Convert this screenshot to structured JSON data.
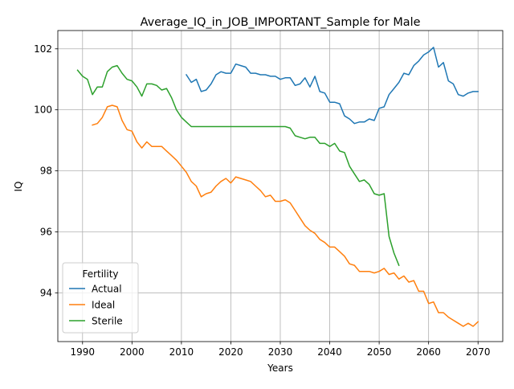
{
  "chart_data": {
    "type": "line",
    "title": "Average_IQ_in_JOB_IMPORTANT_Sample for Male",
    "xlabel": "Years",
    "ylabel": "IQ",
    "xlim": [
      1985,
      2075
    ],
    "ylim": [
      92.4,
      102.6
    ],
    "xticks": [
      1990,
      2000,
      2010,
      2020,
      2030,
      2040,
      2050,
      2060,
      2070
    ],
    "yticks": [
      94,
      96,
      98,
      100,
      102
    ],
    "grid": true,
    "legend": {
      "title": "Fertility",
      "placement": "lower-left"
    },
    "series": [
      {
        "name": "Actual",
        "color": "#1f77b4",
        "x": [
          2011,
          2012,
          2013,
          2014,
          2015,
          2016,
          2017,
          2018,
          2019,
          2020,
          2021,
          2022,
          2023,
          2024,
          2025,
          2026,
          2027,
          2028,
          2029,
          2030,
          2031,
          2032,
          2033,
          2034,
          2035,
          2036,
          2037,
          2038,
          2039,
          2040,
          2041,
          2042,
          2043,
          2044,
          2045,
          2046,
          2047,
          2048,
          2049,
          2050,
          2051,
          2052,
          2053,
          2054,
          2055,
          2056,
          2057,
          2058,
          2059,
          2060,
          2061,
          2062,
          2063,
          2064,
          2065,
          2066,
          2067,
          2068,
          2069,
          2070
        ],
        "y": [
          101.15,
          100.9,
          101.0,
          100.6,
          100.65,
          100.85,
          101.15,
          101.25,
          101.2,
          101.2,
          101.5,
          101.45,
          101.4,
          101.2,
          101.2,
          101.15,
          101.15,
          101.1,
          101.1,
          101.0,
          101.05,
          101.05,
          100.8,
          100.85,
          101.05,
          100.75,
          101.1,
          100.6,
          100.55,
          100.25,
          100.25,
          100.2,
          99.8,
          99.7,
          99.55,
          99.6,
          99.6,
          99.7,
          99.65,
          100.05,
          100.1,
          100.5,
          100.7,
          100.9,
          101.2,
          101.15,
          101.45,
          101.6,
          101.8,
          101.9,
          102.05,
          101.4,
          101.55,
          100.95,
          100.85,
          100.5,
          100.45,
          100.55,
          100.6,
          100.6
        ]
      },
      {
        "name": "Ideal",
        "color": "#ff7f0e",
        "x": [
          1992,
          1993,
          1994,
          1995,
          1996,
          1997,
          1998,
          1999,
          2000,
          2001,
          2002,
          2003,
          2004,
          2005,
          2006,
          2007,
          2008,
          2009,
          2010,
          2011,
          2012,
          2013,
          2014,
          2015,
          2016,
          2017,
          2018,
          2019,
          2020,
          2021,
          2022,
          2023,
          2024,
          2025,
          2026,
          2027,
          2028,
          2029,
          2030,
          2031,
          2032,
          2033,
          2034,
          2035,
          2036,
          2037,
          2038,
          2039,
          2040,
          2041,
          2042,
          2043,
          2044,
          2045,
          2046,
          2047,
          2048,
          2049,
          2050,
          2051,
          2052,
          2053,
          2054,
          2055,
          2056,
          2057,
          2058,
          2059,
          2060,
          2061,
          2062,
          2063,
          2064,
          2065,
          2066,
          2067,
          2068,
          2069,
          2070
        ],
        "y": [
          99.5,
          99.55,
          99.75,
          100.1,
          100.15,
          100.1,
          99.65,
          99.35,
          99.3,
          98.95,
          98.75,
          98.95,
          98.8,
          98.8,
          98.8,
          98.65,
          98.5,
          98.35,
          98.15,
          97.95,
          97.65,
          97.5,
          97.15,
          97.25,
          97.3,
          97.5,
          97.65,
          97.75,
          97.6,
          97.8,
          97.75,
          97.7,
          97.65,
          97.5,
          97.35,
          97.15,
          97.2,
          97.0,
          97.0,
          97.05,
          96.95,
          96.7,
          96.45,
          96.2,
          96.05,
          95.95,
          95.75,
          95.65,
          95.5,
          95.5,
          95.35,
          95.2,
          94.95,
          94.9,
          94.7,
          94.7,
          94.7,
          94.65,
          94.7,
          94.8,
          94.6,
          94.65,
          94.45,
          94.55,
          94.35,
          94.4,
          94.05,
          94.05,
          93.65,
          93.7,
          93.35,
          93.35,
          93.2,
          93.1,
          93.0,
          92.9,
          93.0,
          92.9,
          93.05
        ]
      },
      {
        "name": "Sterile",
        "color": "#2ca02c",
        "x": [
          1989,
          1990,
          1991,
          1992,
          1993,
          1994,
          1995,
          1996,
          1997,
          1998,
          1999,
          2000,
          2001,
          2002,
          2003,
          2004,
          2005,
          2006,
          2007,
          2008,
          2009,
          2010,
          2011,
          2012,
          2013,
          2014,
          2015,
          2016,
          2017,
          2018,
          2019,
          2020,
          2021,
          2022,
          2023,
          2024,
          2025,
          2026,
          2027,
          2028,
          2029,
          2030,
          2031,
          2032,
          2033,
          2034,
          2035,
          2036,
          2037,
          2038,
          2039,
          2040,
          2041,
          2042,
          2043,
          2044,
          2045,
          2046,
          2047,
          2048,
          2049,
          2050,
          2051,
          2052,
          2053,
          2054
        ],
        "y": [
          101.3,
          101.1,
          101.0,
          100.5,
          100.75,
          100.75,
          101.25,
          101.4,
          101.45,
          101.2,
          101.0,
          100.95,
          100.75,
          100.45,
          100.85,
          100.85,
          100.8,
          100.65,
          100.7,
          100.4,
          100.0,
          99.75,
          99.6,
          99.45,
          99.45,
          99.45,
          99.45,
          99.45,
          99.45,
          99.45,
          99.45,
          99.45,
          99.45,
          99.45,
          99.45,
          99.45,
          99.45,
          99.45,
          99.45,
          99.45,
          99.45,
          99.45,
          99.45,
          99.4,
          99.15,
          99.1,
          99.05,
          99.1,
          99.1,
          98.9,
          98.9,
          98.8,
          98.9,
          98.65,
          98.6,
          98.15,
          97.9,
          97.65,
          97.7,
          97.55,
          97.25,
          97.2,
          97.25,
          95.85,
          95.3,
          94.9
        ]
      }
    ]
  }
}
